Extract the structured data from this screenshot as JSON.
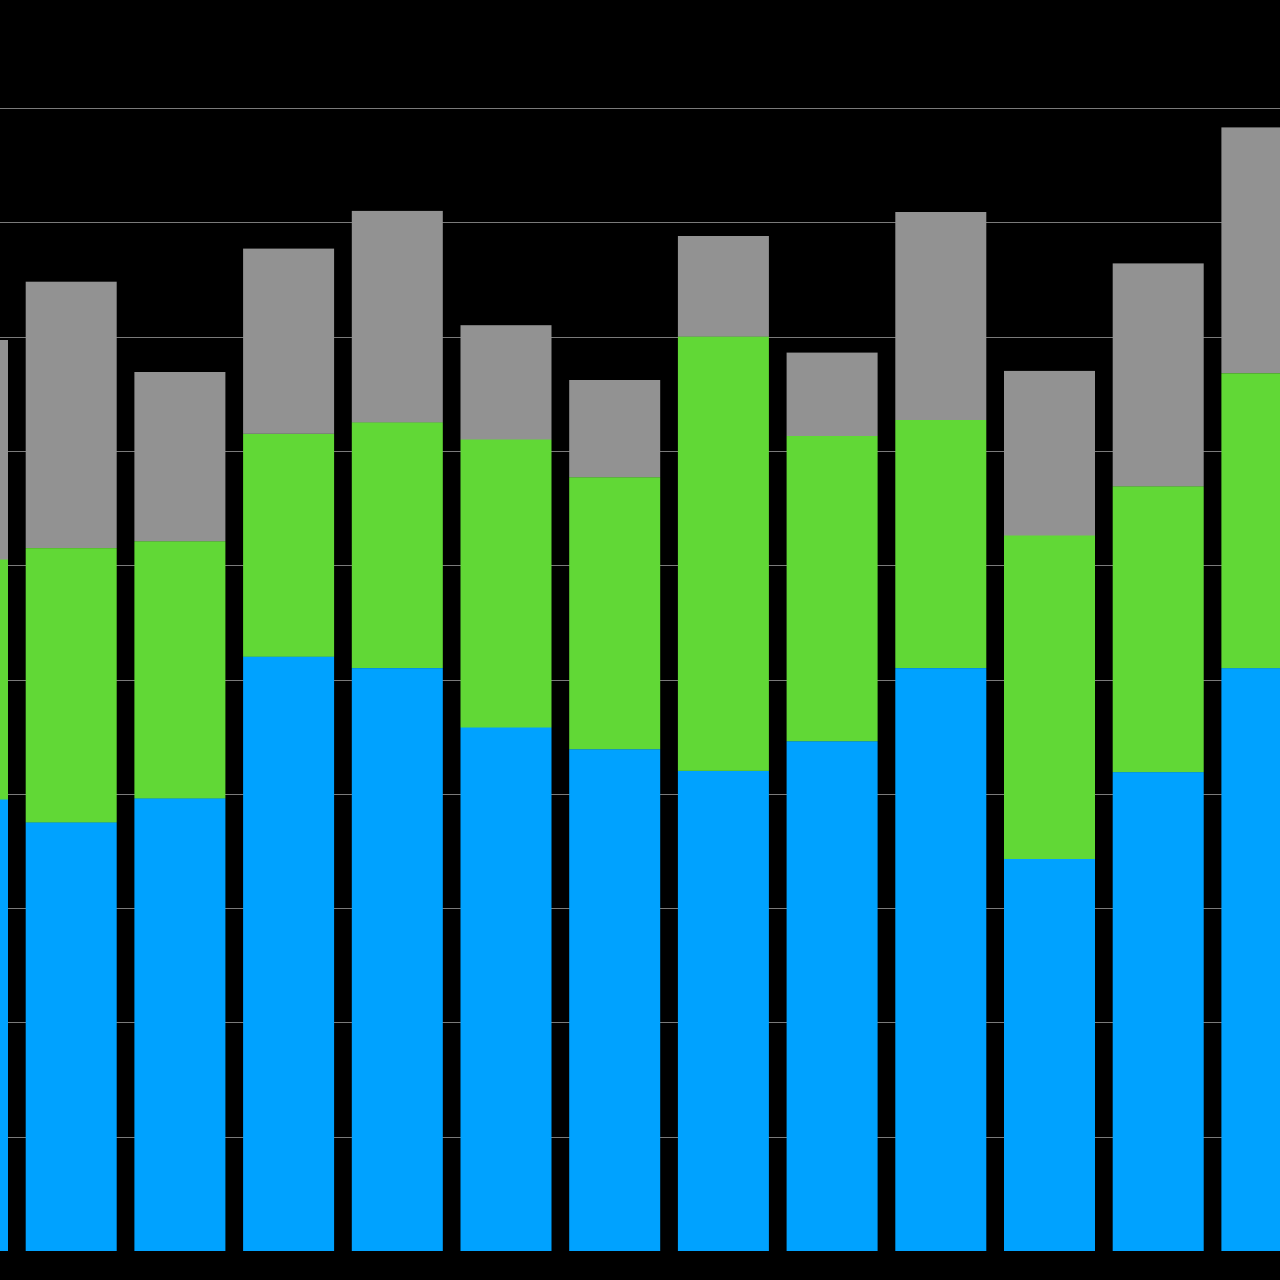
{
  "chart_data": {
    "type": "bar",
    "stacked": true,
    "categories": [
      "",
      "",
      "",
      "",
      "",
      "",
      "",
      "",
      "",
      "",
      "",
      "",
      ""
    ],
    "series": [
      {
        "values": [
          395,
          375,
          396,
          520,
          510,
          458,
          439,
          420,
          446,
          510,
          343,
          419,
          510
        ],
        "color": "#00a2ff"
      },
      {
        "values": [
          210,
          240,
          225,
          195,
          215,
          252,
          238,
          380,
          267,
          217,
          283,
          250,
          258
        ],
        "color": "#61d836"
      },
      {
        "values": [
          192,
          233,
          148,
          162,
          185,
          100,
          85,
          88,
          73,
          182,
          144,
          195,
          215
        ],
        "color": "#929292"
      }
    ],
    "ylim": [
      0,
      1000
    ],
    "grid": true,
    "background": "#000000",
    "grid_color": "#7a7a7a"
  }
}
